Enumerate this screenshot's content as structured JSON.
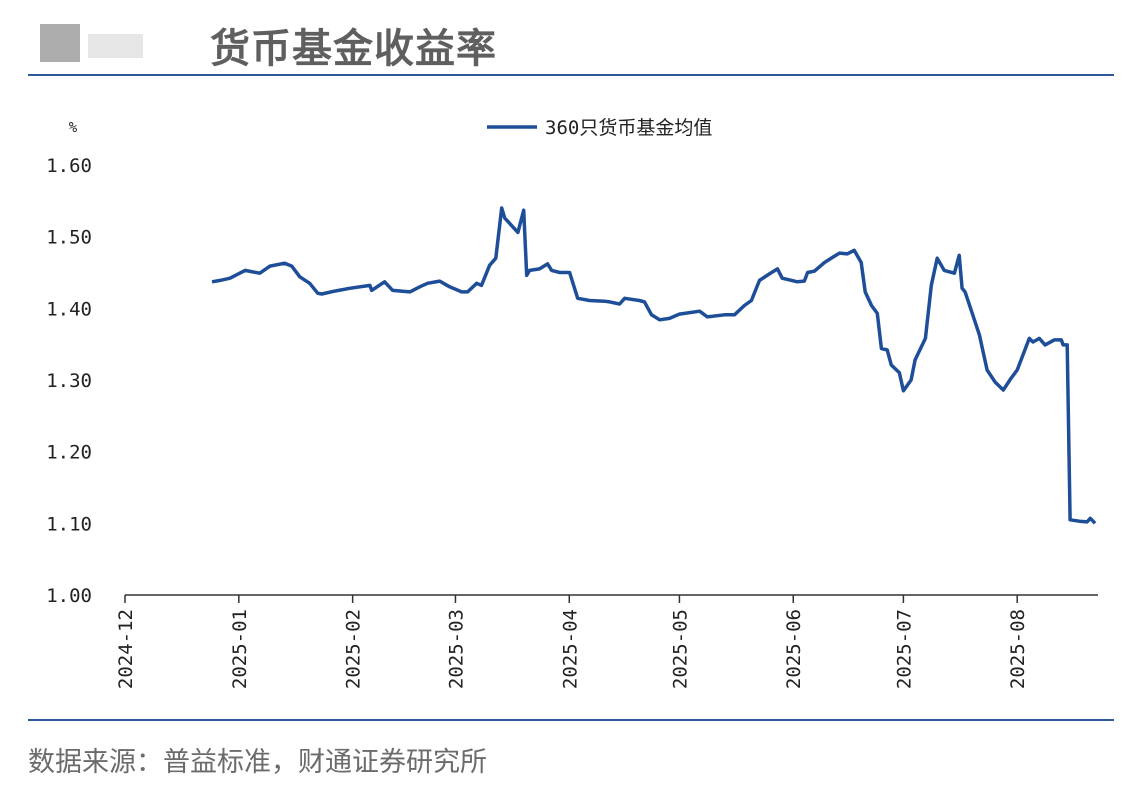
{
  "header": {
    "title": "货币基金收益率"
  },
  "chart_data": {
    "type": "line",
    "y_label": "%",
    "x": [
      23.7,
      25.9,
      28.6,
      32.7,
      36.7,
      39.5,
      43.5,
      45.4,
      47.6,
      50.3,
      52.5,
      53.6,
      57.1,
      61.2,
      66.7,
      67.2,
      70.7,
      72.9,
      77.6,
      80.3,
      82.4,
      85.7,
      88.4,
      91.7,
      93.3,
      95.8,
      97.1,
      99.3,
      101.0,
      102.6,
      103.4,
      107.0,
      108.6,
      109.4,
      110.2,
      112.9,
      115.1,
      116.2,
      118.4,
      121.1,
      123.3,
      126.5,
      130.6,
      132.0,
      134.7,
      136.1,
      140.1,
      141.5,
      143.4,
      145.6,
      148.3,
      151.0,
      156.5,
      158.6,
      163.3,
      166.0,
      168.7,
      170.6,
      172.8,
      175.5,
      177.7,
      179.0,
      183.1,
      185.0,
      185.9,
      187.8,
      190.5,
      192.7,
      194.6,
      196.7,
      198.6,
      200.5,
      201.6,
      203.3,
      204.9,
      206.0,
      207.6,
      208.7,
      210.9,
      212.0,
      214.1,
      215.2,
      218.0,
      219.6,
      221.2,
      223.1,
      225.9,
      227.2,
      228.0,
      228.8,
      230.5,
      232.7,
      234.8,
      237.0,
      239.2,
      241.4,
      243.0,
      246.3,
      247.3,
      249.0,
      250.6,
      253.1,
      255.0,
      255.5,
      256.6,
      257.4,
      259.9,
      262.0,
      262.9,
      264.2
    ],
    "series": [
      {
        "name": "360只货币基金均值",
        "color": "#1f4e99",
        "values": [
          1.437,
          1.439,
          1.442,
          1.453,
          1.449,
          1.459,
          1.463,
          1.459,
          1.444,
          1.435,
          1.421,
          1.42,
          1.424,
          1.428,
          1.432,
          1.425,
          1.437,
          1.425,
          1.423,
          1.43,
          1.435,
          1.438,
          1.43,
          1.423,
          1.423,
          1.435,
          1.432,
          1.46,
          1.47,
          1.54,
          1.526,
          1.506,
          1.537,
          1.446,
          1.453,
          1.455,
          1.462,
          1.453,
          1.45,
          1.45,
          1.414,
          1.411,
          1.41,
          1.409,
          1.406,
          1.414,
          1.411,
          1.409,
          1.391,
          1.384,
          1.386,
          1.392,
          1.396,
          1.388,
          1.391,
          1.391,
          1.404,
          1.411,
          1.439,
          1.448,
          1.455,
          1.442,
          1.437,
          1.438,
          1.45,
          1.452,
          1.464,
          1.471,
          1.477,
          1.476,
          1.481,
          1.464,
          1.423,
          1.404,
          1.393,
          1.344,
          1.342,
          1.321,
          1.31,
          1.285,
          1.3,
          1.328,
          1.358,
          1.432,
          1.47,
          1.453,
          1.449,
          1.474,
          1.428,
          1.423,
          1.397,
          1.363,
          1.314,
          1.297,
          1.286,
          1.303,
          1.314,
          1.358,
          1.353,
          1.358,
          1.349,
          1.356,
          1.356,
          1.349,
          1.349,
          1.105,
          1.103,
          1.102,
          1.107,
          1.1
        ]
      }
    ],
    "xlim": [
      0,
      265
    ],
    "xticks": [
      {
        "value": 0,
        "label": "2024-12"
      },
      {
        "value": 31,
        "label": "2025-01"
      },
      {
        "value": 62,
        "label": "2025-02"
      },
      {
        "value": 90,
        "label": "2025-03"
      },
      {
        "value": 121,
        "label": "2025-04"
      },
      {
        "value": 151,
        "label": "2025-05"
      },
      {
        "value": 182,
        "label": "2025-06"
      },
      {
        "value": 212,
        "label": "2025-07"
      },
      {
        "value": 243,
        "label": "2025-08"
      }
    ],
    "ylim": [
      1.0,
      1.6
    ],
    "yticks": [
      {
        "value": 1.0,
        "label": "1.00"
      },
      {
        "value": 1.1,
        "label": "1.10"
      },
      {
        "value": 1.2,
        "label": "1.20"
      },
      {
        "value": 1.3,
        "label": "1.30"
      },
      {
        "value": 1.4,
        "label": "1.40"
      },
      {
        "value": 1.5,
        "label": "1.50"
      },
      {
        "value": 1.6,
        "label": "1.60"
      }
    ],
    "grid": false,
    "legend": "top"
  },
  "footer": {
    "source": "数据来源：普益标准，财通证券研究所"
  }
}
